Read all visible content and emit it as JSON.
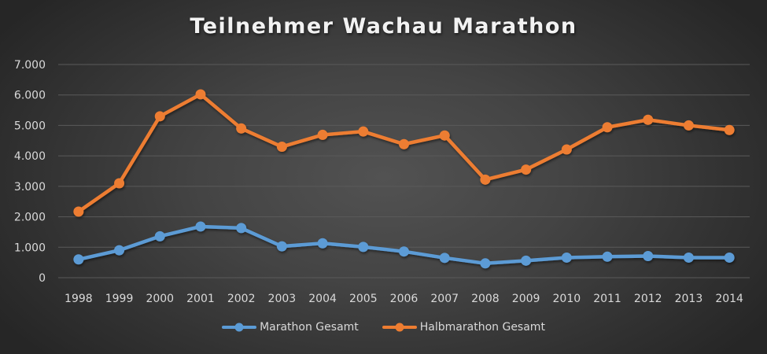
{
  "chart_data": {
    "type": "line",
    "title": "Teilnehmer Wachau Marathon",
    "xlabel": "",
    "ylabel": "",
    "categories": [
      "1998",
      "1999",
      "2000",
      "2001",
      "2002",
      "2003",
      "2004",
      "2005",
      "2006",
      "2007",
      "2008",
      "2009",
      "2010",
      "2011",
      "2012",
      "2013",
      "2014"
    ],
    "series": [
      {
        "name": "Marathon Gesamt",
        "color": "#5b9bd5",
        "values": [
          600,
          900,
          1360,
          1680,
          1630,
          1030,
          1130,
          1010,
          860,
          650,
          470,
          560,
          660,
          690,
          710,
          660,
          660
        ]
      },
      {
        "name": "Halbmarathon Gesamt",
        "color": "#ed7d31",
        "values": [
          2170,
          3100,
          5300,
          6020,
          4900,
          4300,
          4690,
          4800,
          4385,
          4670,
          3220,
          3550,
          4210,
          4940,
          5185,
          5000,
          4850
        ]
      }
    ],
    "ylim": [
      0,
      7000
    ],
    "yticks": [
      "0",
      "1.000",
      "2.000",
      "3.000",
      "4.000",
      "5.000",
      "6.000",
      "7.000"
    ],
    "grid": true,
    "legend_position": "bottom"
  },
  "legend": {
    "items": [
      {
        "label": "Marathon Gesamt",
        "color": "#5b9bd5"
      },
      {
        "label": "Halbmarathon Gesamt",
        "color": "#ed7d31"
      }
    ]
  }
}
